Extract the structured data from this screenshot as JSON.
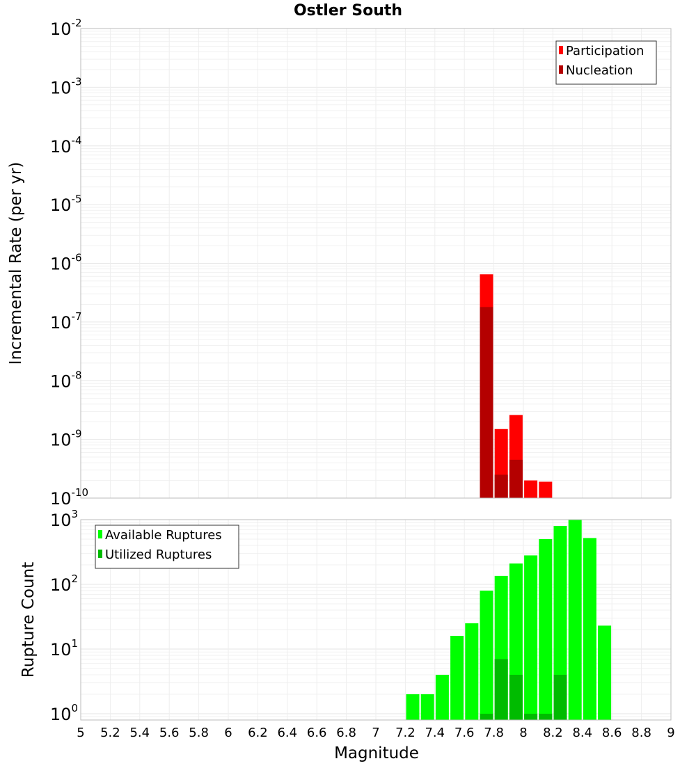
{
  "title": "Ostler South",
  "xlabel": "Magnitude",
  "x_ticks": [
    "5",
    "5.2",
    "5.4",
    "5.6",
    "5.8",
    "6",
    "6.2",
    "6.4",
    "6.6",
    "6.8",
    "7",
    "7.2",
    "7.4",
    "7.6",
    "7.8",
    "8",
    "8.2",
    "8.4",
    "8.6",
    "8.8",
    "9"
  ],
  "colors": {
    "participation": "#ff0000",
    "nucleation": "#b40000",
    "available": "#00ff00",
    "utilized": "#00bb00",
    "grid": "#e6e6e6",
    "frame": "#bbbbbb"
  },
  "chart_data": [
    {
      "type": "bar",
      "panel": "top",
      "ylabel": "Incremental Rate (per yr)",
      "yscale": "log",
      "ylim": [
        1e-10,
        0.01
      ],
      "xlim": [
        5,
        9
      ],
      "y_ticks": [
        {
          "value": 0.01,
          "base": "10",
          "exp": "-2"
        },
        {
          "value": 0.001,
          "base": "10",
          "exp": "-3"
        },
        {
          "value": 0.0001,
          "base": "10",
          "exp": "-4"
        },
        {
          "value": 1e-05,
          "base": "10",
          "exp": "-5"
        },
        {
          "value": 1e-06,
          "base": "10",
          "exp": "-6"
        },
        {
          "value": 1e-07,
          "base": "10",
          "exp": "-7"
        },
        {
          "value": 1e-08,
          "base": "10",
          "exp": "-8"
        },
        {
          "value": 1e-09,
          "base": "10",
          "exp": "-9"
        },
        {
          "value": 1e-10,
          "base": "10",
          "exp": "-10"
        }
      ],
      "legend_position": "top-right",
      "series": [
        {
          "name": "Participation",
          "color_key": "participation",
          "x": [
            7.75,
            7.85,
            7.95,
            8.05,
            8.15
          ],
          "values": [
            6.5e-07,
            1.5e-09,
            2.6e-09,
            2e-10,
            1.9e-10
          ]
        },
        {
          "name": "Nucleation",
          "color_key": "nucleation",
          "x": [
            7.75,
            7.85,
            7.95
          ],
          "values": [
            1.8e-07,
            2.5e-10,
            4.5e-10
          ]
        }
      ]
    },
    {
      "type": "bar",
      "panel": "bottom",
      "ylabel": "Rupture Count",
      "yscale": "log",
      "ylim": [
        0.8,
        1000
      ],
      "xlim": [
        5,
        9
      ],
      "y_ticks": [
        {
          "value": 1000,
          "base": "10",
          "exp": "3"
        },
        {
          "value": 100,
          "base": "10",
          "exp": "2"
        },
        {
          "value": 10,
          "base": "10",
          "exp": "1"
        },
        {
          "value": 1,
          "base": "10",
          "exp": "0"
        }
      ],
      "legend_position": "top-left",
      "series": [
        {
          "name": "Available Ruptures",
          "color_key": "available",
          "x": [
            7.25,
            7.35,
            7.45,
            7.55,
            7.65,
            7.75,
            7.85,
            7.95,
            8.05,
            8.15,
            8.25,
            8.35,
            8.45,
            8.55
          ],
          "values": [
            2,
            2,
            4,
            16,
            25,
            80,
            135,
            210,
            280,
            500,
            800,
            1000,
            520,
            23
          ]
        },
        {
          "name": "Utilized Ruptures",
          "color_key": "utilized",
          "x": [
            7.75,
            7.85,
            7.95,
            8.05,
            8.15,
            8.25
          ],
          "values": [
            1,
            7,
            4,
            1,
            1,
            4
          ]
        }
      ]
    }
  ]
}
